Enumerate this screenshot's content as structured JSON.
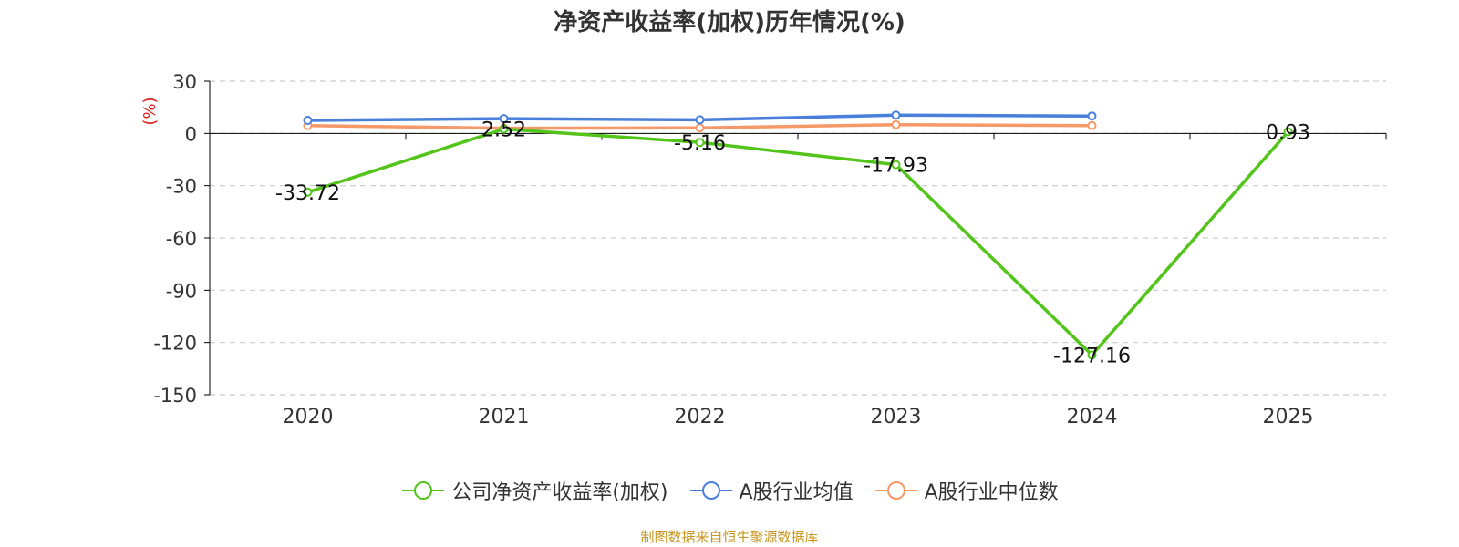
{
  "title": "净资产收益率(加权)历年情况(%)",
  "source": "制图数据来自恒生聚源数据库",
  "colors": {
    "company": "#52c41a",
    "avg": "#4a7fdc",
    "median": "#f79868",
    "ylabel": "#e02020",
    "axis": "#000000",
    "grid": "#cccccc",
    "text": "#333333"
  },
  "chart_data": {
    "type": "line",
    "title": "净资产收益率(加权)历年情况(%)",
    "ylabel": "(%)",
    "xlabel": "",
    "categories": [
      "2020",
      "2021",
      "2022",
      "2023",
      "2024",
      "2025"
    ],
    "ylim": [
      -150,
      30
    ],
    "yticks": [
      30,
      0,
      -30,
      -60,
      -90,
      -120,
      -150
    ],
    "grid": true,
    "legend_position": "bottom",
    "series": [
      {
        "name": "公司净资产收益率(加权)",
        "key": "company",
        "values": [
          -33.72,
          2.52,
          -5.16,
          -17.93,
          -127.16,
          0.93
        ],
        "labels": [
          "-33.72",
          "2.52",
          "-5.16",
          "-17.93",
          "-127.16",
          "0.93"
        ]
      },
      {
        "name": "A股行业均值",
        "key": "avg",
        "values": [
          7.5,
          8.5,
          7.8,
          10.5,
          10.0,
          null
        ]
      },
      {
        "name": "A股行业中位数",
        "key": "median",
        "values": [
          4.5,
          3.0,
          3.2,
          5.0,
          4.5,
          null
        ]
      }
    ]
  }
}
